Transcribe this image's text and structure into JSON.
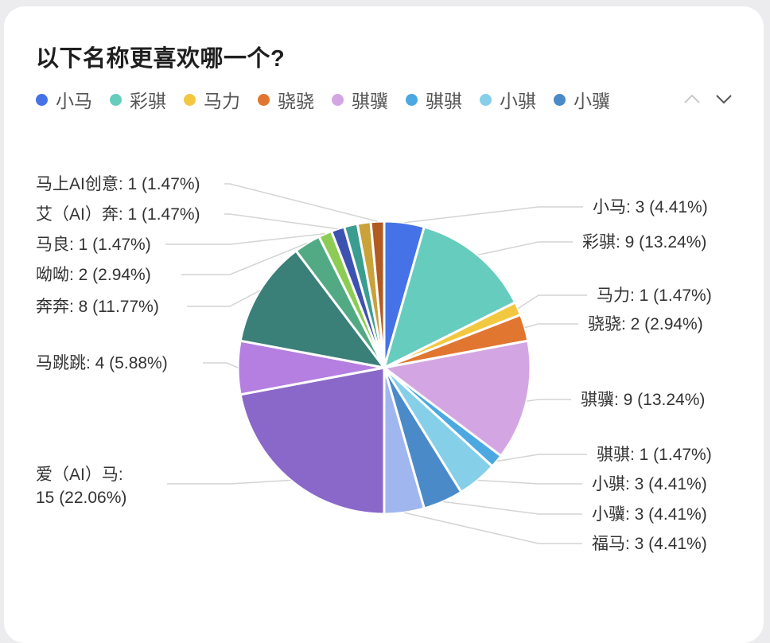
{
  "title": "以下名称更喜欢哪一个?",
  "legend": {
    "items": [
      {
        "name": "小马",
        "color": "#4672e8"
      },
      {
        "name": "彩骐",
        "color": "#66ccbe"
      },
      {
        "name": "马力",
        "color": "#f2c841"
      },
      {
        "name": "骁骁",
        "color": "#e07630"
      },
      {
        "name": "骐骥",
        "color": "#d3a6e3"
      },
      {
        "name": "骐骐",
        "color": "#4ba8e0"
      },
      {
        "name": "小骐",
        "color": "#86cfe8"
      },
      {
        "name": "小骥",
        "color": "#4a8ac8"
      }
    ],
    "pager": {
      "up_icon": "chevron-up-icon",
      "down_icon": "chevron-down-icon"
    }
  },
  "chart_data": {
    "type": "pie",
    "title": "以下名称更喜欢哪一个?",
    "legend_position": "top",
    "slices": [
      {
        "name": "小马",
        "value": 3,
        "percent": "4.41%",
        "label": "小马: 3 (4.41%)",
        "color": "#4672e8"
      },
      {
        "name": "彩骐",
        "value": 9,
        "percent": "13.24%",
        "label": "彩骐: 9 (13.24%)",
        "color": "#66ccbe"
      },
      {
        "name": "马力",
        "value": 1,
        "percent": "1.47%",
        "label": "马力: 1 (1.47%)",
        "color": "#f2c841"
      },
      {
        "name": "骁骁",
        "value": 2,
        "percent": "2.94%",
        "label": "骁骁: 2 (2.94%)",
        "color": "#e07630"
      },
      {
        "name": "骐骥",
        "value": 9,
        "percent": "13.24%",
        "label": "骐骥: 9 (13.24%)",
        "color": "#d3a6e3"
      },
      {
        "name": "骐骐",
        "value": 1,
        "percent": "1.47%",
        "label": "骐骐: 1 (1.47%)",
        "color": "#4ba8e0"
      },
      {
        "name": "小骐",
        "value": 3,
        "percent": "4.41%",
        "label": "小骐: 3 (4.41%)",
        "color": "#86cfe8"
      },
      {
        "name": "小骥",
        "value": 3,
        "percent": "4.41%",
        "label": "小骥: 3 (4.41%)",
        "color": "#4a8ac8"
      },
      {
        "name": "福马",
        "value": 3,
        "percent": "4.41%",
        "label": "福马: 3 (4.41%)",
        "color": "#9fb6ef"
      },
      {
        "name": "爱（AI）马",
        "value": 15,
        "percent": "22.06%",
        "label": [
          "爱（AI）马:",
          "15 (22.06%)"
        ],
        "color": "#8a68c9"
      },
      {
        "name": "马跳跳",
        "value": 4,
        "percent": "5.88%",
        "label": "马跳跳: 4 (5.88%)",
        "color": "#b47fe0"
      },
      {
        "name": "奔奔",
        "value": 8,
        "percent": "11.77%",
        "label": "奔奔: 8 (11.77%)",
        "color": "#3a7f78"
      },
      {
        "name": "呦呦",
        "value": 2,
        "percent": "2.94%",
        "label": "呦呦: 2 (2.94%)",
        "color": "#52aa84"
      },
      {
        "name": "马良",
        "value": 1,
        "percent": "1.47%",
        "label": "马良: 1 (1.47%)",
        "color": "#8ccc55"
      },
      {
        "name": "艾（AI）奔",
        "value": 1,
        "percent": "1.47%",
        "label": "艾（AI）奔: 1 (1.47%)",
        "color": "#3d52b0"
      },
      {
        "name": "slice-16",
        "value": 1,
        "percent": "",
        "label": "",
        "color": "#3a9d90"
      },
      {
        "name": "slice-17",
        "value": 1,
        "percent": "",
        "label": "",
        "color": "#c9a23a"
      },
      {
        "name": "马上AI创意",
        "value": 1,
        "percent": "1.47%",
        "label": "马上AI创意: 1 (1.47%)",
        "color": "#b15a22"
      }
    ]
  }
}
